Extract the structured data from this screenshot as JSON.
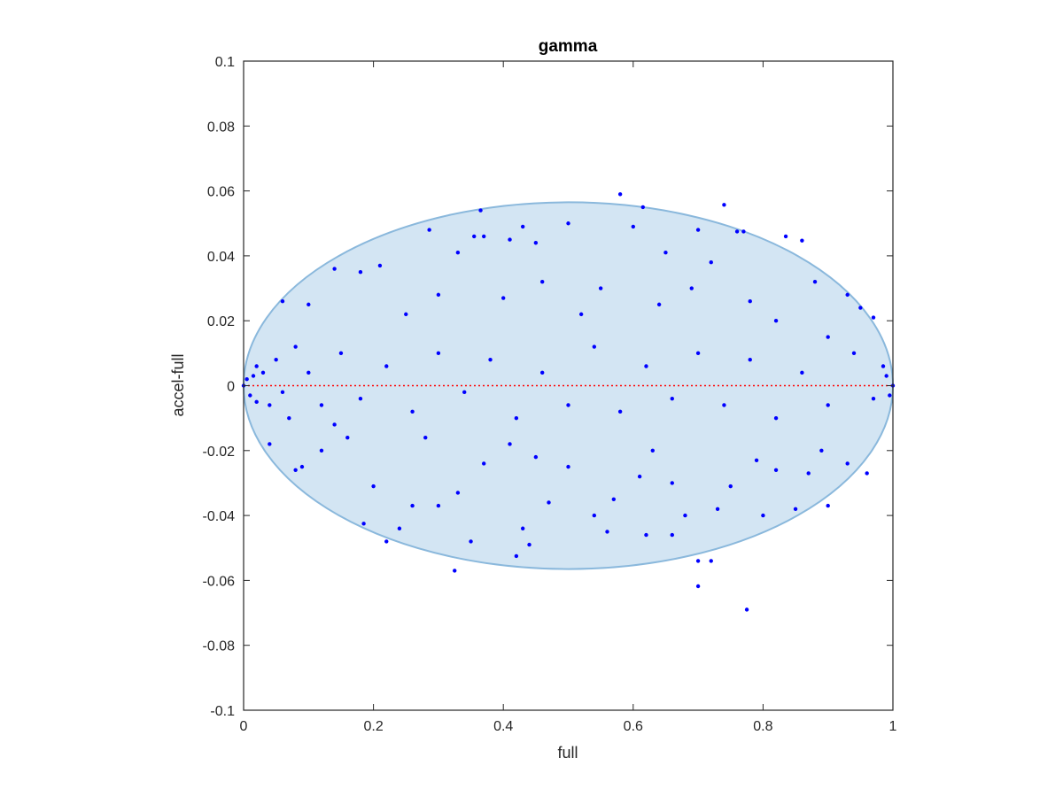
{
  "chart_data": {
    "type": "scatter",
    "title": "gamma",
    "xlabel": "full",
    "ylabel": "accel-full",
    "xlim": [
      0,
      1
    ],
    "ylim": [
      -0.1,
      0.1
    ],
    "x_ticks": [
      0,
      0.2,
      0.4,
      0.6,
      0.8,
      1
    ],
    "x_tick_labels": [
      "0",
      "0.2",
      "0.4",
      "0.6",
      "0.8",
      "1"
    ],
    "y_ticks": [
      -0.1,
      -0.08,
      -0.06,
      -0.04,
      -0.02,
      0,
      0.02,
      0.04,
      0.06,
      0.08,
      0.1
    ],
    "y_tick_labels": [
      "-0.1",
      "-0.08",
      "-0.06",
      "-0.04",
      "-0.02",
      "0",
      "0.02",
      "0.04",
      "0.06",
      "0.08",
      "0.1"
    ],
    "grid": false,
    "reference_line": {
      "y": 0,
      "color": "#ff0000",
      "style": "dotted"
    },
    "ellipse": {
      "cx": 0.5,
      "cy": 0,
      "rx": 0.5,
      "ry": 0.0565,
      "fill": "#d3e5f3",
      "stroke": "#8ab8dc"
    },
    "series": [
      {
        "color": "#0000ff",
        "points": [
          [
            0.58,
            0.059
          ],
          [
            0.74,
            0.0557
          ],
          [
            0.615,
            0.055
          ],
          [
            0.365,
            0.054
          ],
          [
            0.5,
            0.05
          ],
          [
            0.43,
            0.049
          ],
          [
            0.6,
            0.049
          ],
          [
            0.286,
            0.048
          ],
          [
            0.7,
            0.048
          ],
          [
            0.76,
            0.0475
          ],
          [
            0.77,
            0.0475
          ],
          [
            0.835,
            0.046
          ],
          [
            0.355,
            0.046
          ],
          [
            0.37,
            0.046
          ],
          [
            0.41,
            0.045
          ],
          [
            0.45,
            0.044
          ],
          [
            0.86,
            0.0447
          ],
          [
            0.33,
            0.041
          ],
          [
            0.65,
            0.041
          ],
          [
            0.21,
            0.037
          ],
          [
            0.72,
            0.038
          ],
          [
            0.18,
            0.035
          ],
          [
            0.14,
            0.036
          ],
          [
            0.88,
            0.032
          ],
          [
            0.46,
            0.032
          ],
          [
            0.93,
            0.028
          ],
          [
            0.95,
            0.024
          ],
          [
            0.97,
            0.021
          ],
          [
            0.06,
            0.026
          ],
          [
            0.1,
            0.025
          ],
          [
            0.3,
            0.028
          ],
          [
            0.55,
            0.03
          ],
          [
            0.69,
            0.03
          ],
          [
            0.78,
            0.026
          ],
          [
            0.4,
            0.027
          ],
          [
            0.25,
            0.022
          ],
          [
            0.52,
            0.022
          ],
          [
            0.64,
            0.025
          ],
          [
            0.82,
            0.02
          ],
          [
            0.9,
            0.015
          ],
          [
            0.325,
            -0.057
          ],
          [
            0.775,
            -0.069
          ],
          [
            0.7,
            -0.0618
          ],
          [
            0.7,
            -0.054
          ],
          [
            0.72,
            -0.054
          ],
          [
            0.42,
            -0.0525
          ],
          [
            0.44,
            -0.049
          ],
          [
            0.35,
            -0.048
          ],
          [
            0.62,
            -0.046
          ],
          [
            0.66,
            -0.046
          ],
          [
            0.56,
            -0.045
          ],
          [
            0.22,
            -0.048
          ],
          [
            0.185,
            -0.0425
          ],
          [
            0.24,
            -0.044
          ],
          [
            0.43,
            -0.044
          ],
          [
            0.8,
            -0.04
          ],
          [
            0.85,
            -0.038
          ],
          [
            0.9,
            -0.037
          ],
          [
            0.54,
            -0.04
          ],
          [
            0.47,
            -0.036
          ],
          [
            0.57,
            -0.035
          ],
          [
            0.68,
            -0.04
          ],
          [
            0.73,
            -0.038
          ],
          [
            0.26,
            -0.037
          ],
          [
            0.3,
            -0.037
          ],
          [
            0.04,
            -0.018
          ],
          [
            0.08,
            -0.026
          ],
          [
            0.09,
            -0.025
          ],
          [
            0.12,
            -0.02
          ],
          [
            0.16,
            -0.016
          ],
          [
            0.2,
            -0.031
          ],
          [
            0.33,
            -0.033
          ],
          [
            0.37,
            -0.024
          ],
          [
            0.5,
            -0.025
          ],
          [
            0.61,
            -0.028
          ],
          [
            0.66,
            -0.03
          ],
          [
            0.75,
            -0.031
          ],
          [
            0.82,
            -0.026
          ],
          [
            0.87,
            -0.027
          ],
          [
            0.93,
            -0.024
          ],
          [
            0.96,
            -0.027
          ],
          [
            0.89,
            -0.02
          ],
          [
            0.79,
            -0.023
          ],
          [
            0.63,
            -0.02
          ],
          [
            0.45,
            -0.022
          ],
          [
            0.41,
            -0.018
          ],
          [
            0.28,
            -0.016
          ],
          [
            0.14,
            -0.012
          ],
          [
            0.07,
            -0.01
          ],
          [
            0.02,
            -0.005
          ],
          [
            0.0,
            0.0
          ],
          [
            0.005,
            0.002
          ],
          [
            0.01,
            -0.003
          ],
          [
            0.015,
            0.003
          ],
          [
            0.02,
            0.006
          ],
          [
            0.03,
            0.004
          ],
          [
            0.04,
            -0.006
          ],
          [
            0.05,
            0.008
          ],
          [
            0.06,
            -0.002
          ],
          [
            0.08,
            0.012
          ],
          [
            0.1,
            0.004
          ],
          [
            0.12,
            -0.006
          ],
          [
            0.15,
            0.01
          ],
          [
            0.18,
            -0.004
          ],
          [
            0.22,
            0.006
          ],
          [
            0.26,
            -0.008
          ],
          [
            0.3,
            0.01
          ],
          [
            0.34,
            -0.002
          ],
          [
            0.38,
            0.008
          ],
          [
            0.42,
            -0.01
          ],
          [
            0.46,
            0.004
          ],
          [
            0.5,
            -0.006
          ],
          [
            0.54,
            0.012
          ],
          [
            0.58,
            -0.008
          ],
          [
            0.62,
            0.006
          ],
          [
            0.66,
            -0.004
          ],
          [
            0.7,
            0.01
          ],
          [
            0.74,
            -0.006
          ],
          [
            0.78,
            0.008
          ],
          [
            0.82,
            -0.01
          ],
          [
            0.86,
            0.004
          ],
          [
            0.9,
            -0.006
          ],
          [
            0.94,
            0.01
          ],
          [
            0.97,
            -0.004
          ],
          [
            0.99,
            0.003
          ],
          [
            1.0,
            0.0
          ],
          [
            0.995,
            -0.003
          ],
          [
            0.985,
            0.006
          ]
        ]
      }
    ]
  }
}
